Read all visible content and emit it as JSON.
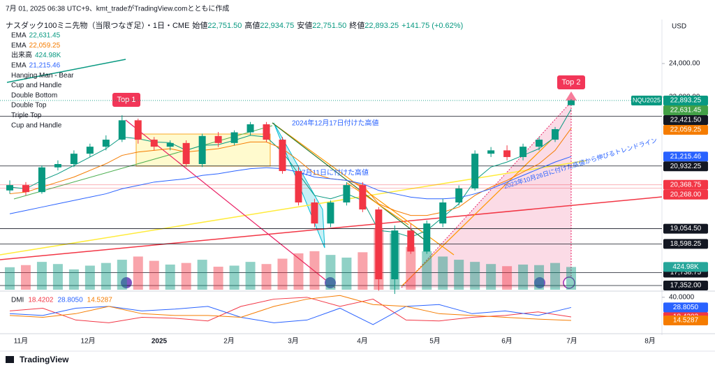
{
  "header": {
    "caption": "7月 01, 2025 06:38 UTC+9、kmt_tradeがTradingView.comとともに作成",
    "symbol": "ナスダック100ミニ先物（当限つなぎ足）・1日・CME",
    "ohlc": [
      {
        "name": "始値",
        "value": "22,751.50"
      },
      {
        "name": "高値",
        "value": "22,934.75"
      },
      {
        "name": "安値",
        "value": "22,751.50"
      },
      {
        "name": "終値",
        "value": "22,893.25"
      }
    ],
    "change": "+141.75 (+0.62%)"
  },
  "currency": "USD",
  "patterns": [
    "Hanging Man - Bear",
    "Cup and Handle",
    "Double Bottom",
    "Double Top",
    "Triple Top",
    "Cup and Handle"
  ],
  "annotations": {
    "top1": "Top 1",
    "top2": "Top 2",
    "dec_high": "2024年12月17日付けた高値",
    "jul_high": "7月11日に付けた高値",
    "trendline": "2023年10月26日に付けた底値から伸びるトレンドライン"
  },
  "footer": "TradingView",
  "chart_data": {
    "type": "candlestick",
    "x_labels": [
      "11月",
      "12月",
      "2025",
      "2月",
      "3月",
      "4月",
      "5月",
      "6月",
      "7月",
      "8月"
    ],
    "ylim": [
      17227,
      25275
    ],
    "yticks": [
      {
        "value": 24000,
        "label": "24,000.00"
      },
      {
        "value": 23000,
        "label": "23,000.00"
      }
    ],
    "open": [
      20200,
      20360,
      20150,
      20890,
      20990,
      21300,
      21510,
      21720,
      22300,
      21720,
      21510,
      21620,
      20990,
      21830,
      21620,
      21940,
      22180,
      21720,
      20780,
      19840,
      19210,
      19840,
      20360,
      19630,
      17540,
      19000,
      18370,
      19210,
      19840,
      20260,
      21300,
      21400,
      21200,
      21510,
      21720,
      22751.5
    ],
    "high": [
      20500,
      20450,
      20950,
      21100,
      21400,
      21600,
      21850,
      22450,
      22350,
      21800,
      21700,
      21700,
      21900,
      21950,
      22000,
      22250,
      22250,
      21800,
      20900,
      19950,
      19900,
      20450,
      20450,
      19700,
      19150,
      19200,
      19300,
      19950,
      20350,
      21400,
      21500,
      21550,
      21600,
      21800,
      22100,
      22934.75
    ],
    "low": [
      20100,
      20050,
      20100,
      20800,
      20900,
      21200,
      21400,
      21650,
      21600,
      21400,
      21400,
      20900,
      20900,
      21500,
      21550,
      21850,
      21650,
      20700,
      19750,
      19100,
      19100,
      19750,
      19550,
      17200,
      17100,
      18300,
      18300,
      19100,
      19750,
      20200,
      21200,
      21100,
      21100,
      21400,
      21650,
      22751.5
    ],
    "close": [
      20360,
      20150,
      20890,
      20990,
      21300,
      21510,
      21720,
      22300,
      21720,
      21510,
      21620,
      20990,
      21830,
      21620,
      21940,
      22180,
      21720,
      20780,
      19840,
      19210,
      19840,
      20360,
      19630,
      17540,
      19000,
      18370,
      19210,
      19840,
      20260,
      21300,
      21400,
      21200,
      21510,
      21720,
      22035,
      22893.25
    ],
    "volume": [
      420000,
      460000,
      520000,
      480000,
      380000,
      450000,
      500000,
      560000,
      620000,
      540000,
      470000,
      500000,
      560000,
      430000,
      450000,
      520000,
      480000,
      580000,
      680000,
      720000,
      650000,
      600000,
      700000,
      1150000,
      1050000,
      800000,
      720000,
      620000,
      560000,
      520000,
      480000,
      440000,
      470000,
      460000,
      500000,
      424980
    ],
    "volume_lim": [
      0,
      1500000
    ],
    "volume_label": "424.98K",
    "volume_name": "出来高",
    "up_color": "#089981",
    "down_color": "#f23645",
    "series": [
      {
        "name": "EMA",
        "color": "#089981",
        "legend_value": "22,631.45",
        "values": [
          20300,
          20250,
          20500,
          20700,
          20950,
          21200,
          21450,
          21800,
          21750,
          21650,
          21630,
          21400,
          21550,
          21570,
          21700,
          21850,
          21800,
          21350,
          20700,
          20050,
          19950,
          20100,
          19900,
          19000,
          18950,
          18800,
          19000,
          19400,
          19800,
          20500,
          20900,
          21050,
          21250,
          21450,
          21800,
          22631.45
        ]
      },
      {
        "name": "EMA",
        "color": "#f57c00",
        "legend_value": "22,059.25",
        "values": [
          20100,
          20150,
          20300,
          20450,
          20600,
          20800,
          21000,
          21250,
          21350,
          21400,
          21450,
          21350,
          21400,
          21450,
          21550,
          21650,
          21650,
          21450,
          21100,
          20700,
          20550,
          20500,
          20350,
          19800,
          19600,
          19450,
          19450,
          19550,
          19700,
          20050,
          20300,
          20500,
          20750,
          21000,
          21400,
          22059.25
        ]
      },
      {
        "name": "EMA",
        "color": "#2962ff",
        "legend_value": "21,215.46",
        "values": [
          19500,
          19600,
          19700,
          19800,
          19900,
          20000,
          20100,
          20250,
          20350,
          20450,
          20500,
          20550,
          20650,
          20700,
          20780,
          20850,
          20880,
          20850,
          20750,
          20600,
          20550,
          20500,
          20400,
          20200,
          20100,
          20000,
          19950,
          19950,
          19980,
          20100,
          20250,
          20450,
          20650,
          20850,
          21050,
          21215.46
        ]
      }
    ],
    "symbol_tag": "NQU2025",
    "levels": [
      {
        "value": 22893.25,
        "label": "22,893.25",
        "color": "#089981",
        "line": "dotted"
      },
      {
        "value": 22631.45,
        "label": "22,631.45",
        "color": "#43a047",
        "line": "none"
      },
      {
        "value": 22421.5,
        "label": "22,421.50",
        "color": "#131722",
        "line": "solid"
      },
      {
        "value": 22059.25,
        "label": "22,059.25",
        "color": "#f57c00",
        "line": "none"
      },
      {
        "value": 21215.46,
        "label": "21,215.46",
        "color": "#2962ff",
        "line": "none"
      },
      {
        "value": 20932.25,
        "label": "20,932.25",
        "color": "#131722",
        "line": "solid"
      },
      {
        "value": 20368.75,
        "label": "20,368.75",
        "color": "#f23645",
        "line": "solid"
      },
      {
        "value": 20268,
        "label": "20,268.00",
        "color": "#f23645",
        "line": "solid"
      },
      {
        "value": 19054.5,
        "label": "19,054.50",
        "color": "#131722",
        "line": "solid"
      },
      {
        "value": 18598.25,
        "label": "18,598.25",
        "color": "#131722",
        "line": "solid"
      },
      {
        "value": 17738.75,
        "label": "17,738.75",
        "color": "#131722",
        "line": "solid"
      },
      {
        "value": 17352,
        "label": "17,352.00",
        "color": "#131722",
        "line": "solid"
      }
    ],
    "dmi": {
      "name": "DMI",
      "ylim": [
        0,
        46
      ],
      "yticks": [
        {
          "value": 40,
          "label": "40.0000"
        }
      ],
      "series": [
        {
          "color": "#f23645",
          "value_label": "18.4202",
          "values": [
            25,
            28,
            15,
            12,
            18,
            17,
            14,
            30,
            38,
            40,
            30,
            38,
            15,
            14,
            18,
            20,
            24,
            18.4202
          ]
        },
        {
          "color": "#2962ff",
          "value_label": "28.8050",
          "values": [
            22,
            20,
            28,
            30,
            25,
            27,
            30,
            18,
            12,
            15,
            28,
            10,
            30,
            32,
            22,
            25,
            20,
            28.805
          ]
        },
        {
          "color": "#f57c00",
          "value_label": "14.5287",
          "values": [
            20,
            18,
            22,
            30,
            22,
            20,
            20,
            18,
            30,
            38,
            42,
            32,
            30,
            22,
            20,
            18,
            16,
            14.5287
          ]
        }
      ]
    }
  }
}
